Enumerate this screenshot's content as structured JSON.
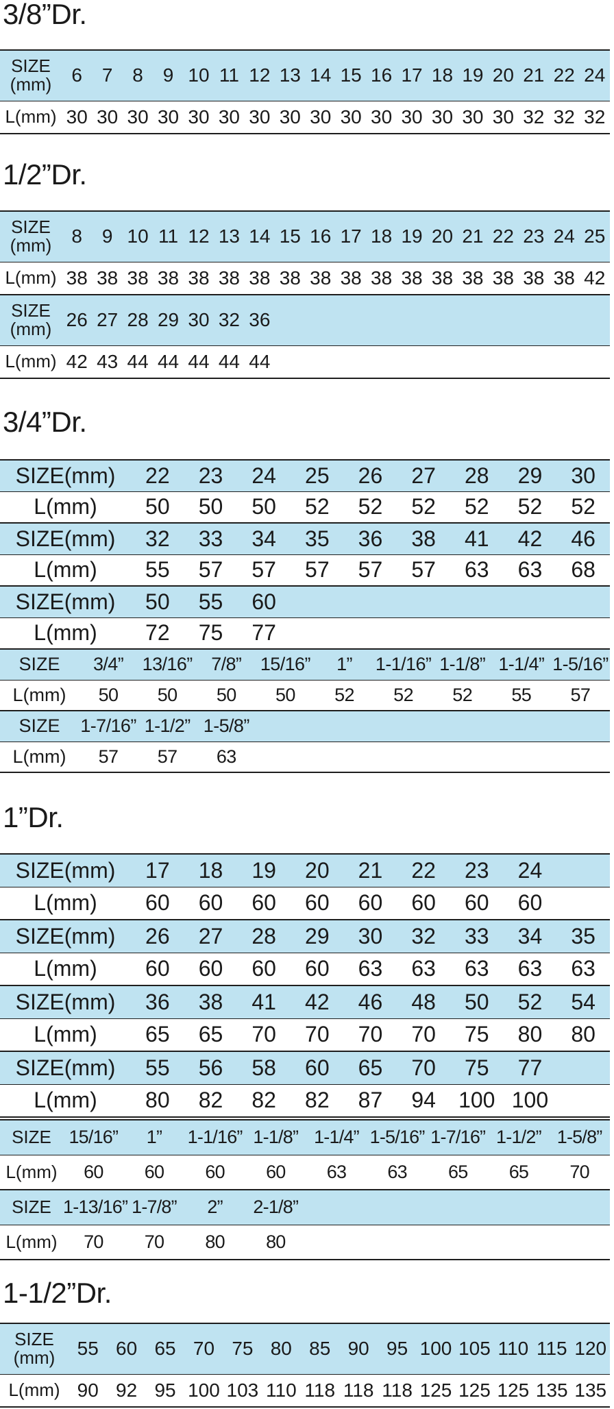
{
  "labels": {
    "size_mm": "SIZE(mm)",
    "size_mm_line1": "SIZE",
    "size_mm_line2": "(mm)",
    "size": "SIZE",
    "l_mm": "L(mm)"
  },
  "sections": [
    {
      "title": "3/8”Dr.",
      "tables": [
        {
          "rows": [
            {
              "size": [
                "6",
                "7",
                "8",
                "9",
                "10",
                "11",
                "12",
                "13",
                "14",
                "15",
                "16",
                "17",
                "18",
                "19",
                "20",
                "21",
                "22",
                "24"
              ],
              "l": [
                "30",
                "30",
                "30",
                "30",
                "30",
                "30",
                "30",
                "30",
                "30",
                "30",
                "30",
                "30",
                "30",
                "30",
                "30",
                "32",
                "32",
                "32"
              ]
            }
          ]
        }
      ]
    },
    {
      "title": "1/2”Dr.",
      "tables": [
        {
          "rows": [
            {
              "size": [
                "8",
                "9",
                "10",
                "11",
                "12",
                "13",
                "14",
                "15",
                "16",
                "17",
                "18",
                "19",
                "20",
                "21",
                "22",
                "23",
                "24",
                "25"
              ],
              "l": [
                "38",
                "38",
                "38",
                "38",
                "38",
                "38",
                "38",
                "38",
                "38",
                "38",
                "38",
                "38",
                "38",
                "38",
                "38",
                "38",
                "38",
                "42"
              ]
            },
            {
              "size": [
                "26",
                "27",
                "28",
                "29",
                "30",
                "32",
                "36"
              ],
              "l": [
                "42",
                "43",
                "44",
                "44",
                "44",
                "44",
                "44"
              ]
            }
          ]
        }
      ]
    },
    {
      "title": "3/4”Dr.",
      "tables": [
        {
          "rows": [
            {
              "size": [
                "22",
                "23",
                "24",
                "25",
                "26",
                "27",
                "28",
                "29",
                "30"
              ],
              "l": [
                "50",
                "50",
                "50",
                "52",
                "52",
                "52",
                "52",
                "52",
                "52"
              ]
            },
            {
              "size": [
                "32",
                "33",
                "34",
                "35",
                "36",
                "38",
                "41",
                "42",
                "46"
              ],
              "l": [
                "55",
                "57",
                "57",
                "57",
                "57",
                "57",
                "63",
                "63",
                "68"
              ]
            },
            {
              "size": [
                "50",
                "55",
                "60"
              ],
              "l": [
                "72",
                "75",
                "77"
              ]
            }
          ]
        },
        {
          "rows": [
            {
              "size": [
                "3/4”",
                "13/16”",
                "7/8”",
                "15/16”",
                "1”",
                "1-1/16”",
                "1-1/8”",
                "1-1/4”",
                "1-5/16”"
              ],
              "l": [
                "50",
                "50",
                "50",
                "50",
                "52",
                "52",
                "52",
                "55",
                "57"
              ]
            },
            {
              "size": [
                "1-7/16”",
                "1-1/2”",
                "1-5/8”"
              ],
              "l": [
                "57",
                "57",
                "63"
              ]
            }
          ]
        }
      ]
    },
    {
      "title": "1”Dr.",
      "tables": [
        {
          "rows": [
            {
              "size": [
                "17",
                "18",
                "19",
                "20",
                "21",
                "22",
                "23",
                "24"
              ],
              "l": [
                "60",
                "60",
                "60",
                "60",
                "60",
                "60",
                "60",
                "60"
              ]
            },
            {
              "size": [
                "26",
                "27",
                "28",
                "29",
                "30",
                "32",
                "33",
                "34",
                "35"
              ],
              "l": [
                "60",
                "60",
                "60",
                "60",
                "63",
                "63",
                "63",
                "63",
                "63"
              ]
            },
            {
              "size": [
                "36",
                "38",
                "41",
                "42",
                "46",
                "48",
                "50",
                "52",
                "54"
              ],
              "l": [
                "65",
                "65",
                "70",
                "70",
                "70",
                "70",
                "75",
                "80",
                "80"
              ]
            },
            {
              "size": [
                "55",
                "56",
                "58",
                "60",
                "65",
                "70",
                "75",
                "77"
              ],
              "l": [
                "80",
                "82",
                "82",
                "82",
                "87",
                "94",
                "100",
                "100"
              ]
            }
          ]
        },
        {
          "rows": [
            {
              "size": [
                "15/16”",
                "1”",
                "1-1/16”",
                "1-1/8”",
                "1-1/4”",
                "1-5/16”",
                "1-7/16”",
                "1-1/2”",
                "1-5/8”"
              ],
              "l": [
                "60",
                "60",
                "60",
                "60",
                "63",
                "63",
                "65",
                "65",
                "70"
              ]
            },
            {
              "size": [
                "1-13/16”",
                "1-7/8”",
                "2”",
                "2-1/8”"
              ],
              "l": [
                "70",
                "70",
                "80",
                "80"
              ]
            }
          ]
        }
      ]
    },
    {
      "title": "1-1/2”Dr.",
      "tables": [
        {
          "rows": [
            {
              "size": [
                "55",
                "60",
                "65",
                "70",
                "75",
                "80",
                "85",
                "90",
                "95",
                "100",
                "105",
                "110",
                "115",
                "120"
              ],
              "l": [
                "90",
                "92",
                "95",
                "100",
                "103",
                "110",
                "118",
                "118",
                "118",
                "125",
                "125",
                "125",
                "135",
                "135"
              ]
            }
          ]
        }
      ]
    }
  ]
}
